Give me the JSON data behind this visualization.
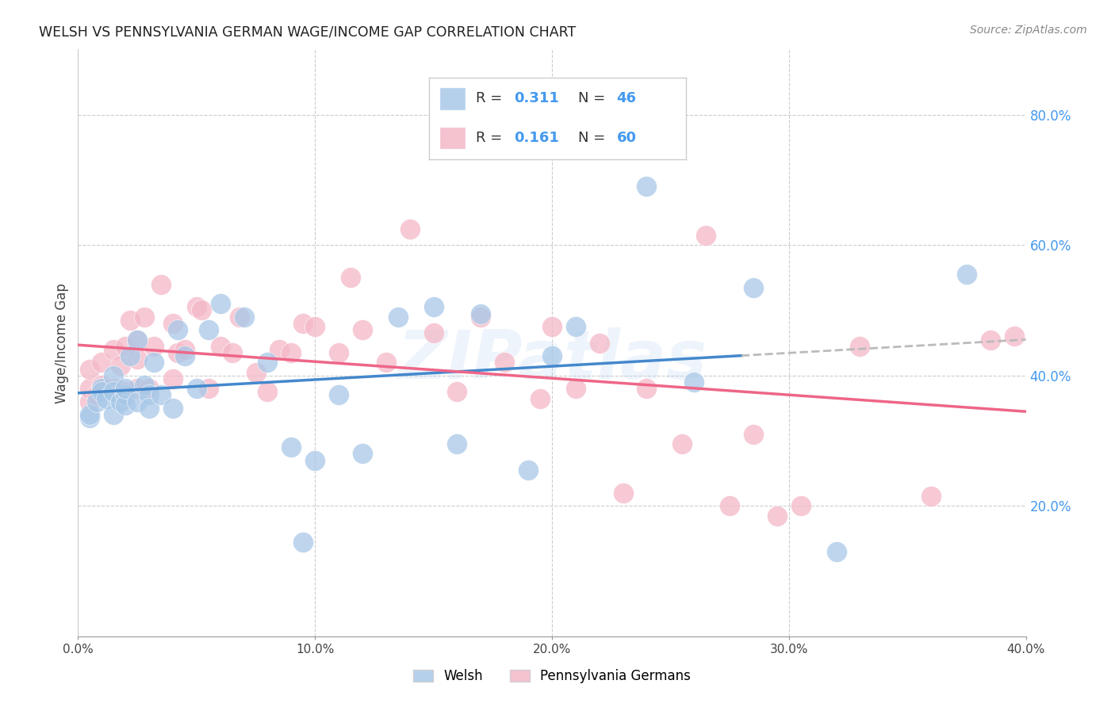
{
  "title": "WELSH VS PENNSYLVANIA GERMAN WAGE/INCOME GAP CORRELATION CHART",
  "source": "Source: ZipAtlas.com",
  "ylabel": "Wage/Income Gap",
  "xlim": [
    0.0,
    0.4
  ],
  "ylim": [
    0.0,
    0.9
  ],
  "xticks": [
    0.0,
    0.1,
    0.2,
    0.3,
    0.4
  ],
  "xtick_labels": [
    "0.0%",
    "10.0%",
    "20.0%",
    "30.0%",
    "40.0%"
  ],
  "yticks": [
    0.2,
    0.4,
    0.6,
    0.8
  ],
  "ytick_labels": [
    "20.0%",
    "40.0%",
    "60.0%",
    "80.0%"
  ],
  "welsh_color": "#a8c8e8",
  "pg_color": "#f4b8c8",
  "trend_welsh_color": "#4488cc",
  "trend_pg_color": "#ee6688",
  "trend_welsh_ext_color": "#aaaaaa",
  "background": "#ffffff",
  "grid_color": "#cccccc",
  "watermark": "ZIPatlas",
  "legend_welsh_label": "Welsh",
  "legend_pg_label": "Pennsylvania Germans",
  "welsh_r": "0.311",
  "welsh_n": "46",
  "pg_r": "0.161",
  "pg_n": "60",
  "welsh_x": [
    0.005,
    0.005,
    0.008,
    0.01,
    0.01,
    0.012,
    0.015,
    0.015,
    0.015,
    0.018,
    0.02,
    0.02,
    0.02,
    0.022,
    0.025,
    0.025,
    0.028,
    0.03,
    0.03,
    0.032,
    0.035,
    0.04,
    0.042,
    0.045,
    0.05,
    0.055,
    0.06,
    0.07,
    0.08,
    0.09,
    0.095,
    0.1,
    0.11,
    0.12,
    0.135,
    0.15,
    0.16,
    0.17,
    0.19,
    0.2,
    0.21,
    0.24,
    0.26,
    0.285,
    0.32,
    0.375
  ],
  "welsh_y": [
    0.335,
    0.34,
    0.36,
    0.38,
    0.375,
    0.365,
    0.4,
    0.34,
    0.375,
    0.36,
    0.37,
    0.355,
    0.38,
    0.43,
    0.36,
    0.455,
    0.385,
    0.37,
    0.35,
    0.42,
    0.37,
    0.35,
    0.47,
    0.43,
    0.38,
    0.47,
    0.51,
    0.49,
    0.42,
    0.29,
    0.145,
    0.27,
    0.37,
    0.28,
    0.49,
    0.505,
    0.295,
    0.495,
    0.255,
    0.43,
    0.475,
    0.69,
    0.39,
    0.535,
    0.13,
    0.555
  ],
  "pg_x": [
    0.005,
    0.005,
    0.005,
    0.008,
    0.01,
    0.01,
    0.015,
    0.015,
    0.018,
    0.02,
    0.02,
    0.022,
    0.025,
    0.025,
    0.025,
    0.028,
    0.03,
    0.032,
    0.035,
    0.04,
    0.04,
    0.042,
    0.045,
    0.05,
    0.052,
    0.055,
    0.06,
    0.065,
    0.068,
    0.075,
    0.08,
    0.085,
    0.09,
    0.095,
    0.1,
    0.11,
    0.115,
    0.12,
    0.13,
    0.14,
    0.15,
    0.16,
    0.17,
    0.18,
    0.195,
    0.2,
    0.21,
    0.22,
    0.23,
    0.24,
    0.255,
    0.265,
    0.275,
    0.285,
    0.295,
    0.305,
    0.33,
    0.36,
    0.385,
    0.395
  ],
  "pg_y": [
    0.36,
    0.38,
    0.41,
    0.37,
    0.385,
    0.42,
    0.38,
    0.44,
    0.415,
    0.375,
    0.445,
    0.485,
    0.455,
    0.425,
    0.38,
    0.49,
    0.38,
    0.445,
    0.54,
    0.395,
    0.48,
    0.435,
    0.44,
    0.505,
    0.5,
    0.38,
    0.445,
    0.435,
    0.49,
    0.405,
    0.375,
    0.44,
    0.435,
    0.48,
    0.475,
    0.435,
    0.55,
    0.47,
    0.42,
    0.625,
    0.465,
    0.375,
    0.49,
    0.42,
    0.365,
    0.475,
    0.38,
    0.45,
    0.22,
    0.38,
    0.295,
    0.615,
    0.2,
    0.31,
    0.185,
    0.2,
    0.445,
    0.215,
    0.455,
    0.46
  ]
}
